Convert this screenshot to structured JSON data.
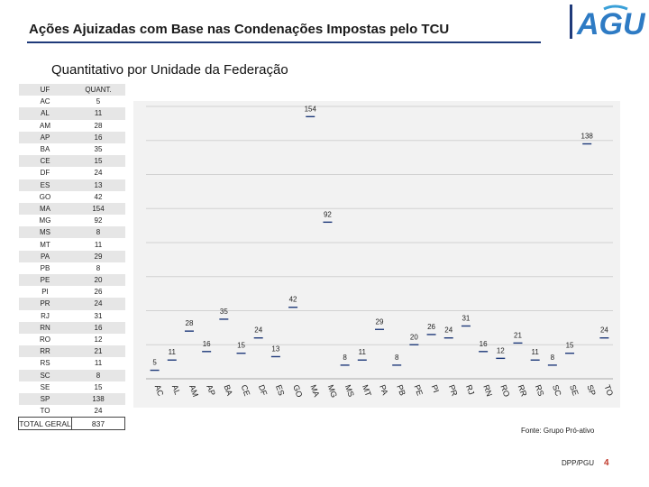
{
  "header": {
    "title": "Ações Ajuizadas com Base nas Condenações Impostas pelo TCU",
    "logo_text": "AGU"
  },
  "subtitle": "Quantitativo por Unidade da Federação",
  "table": {
    "headers": [
      "UF",
      "QUANT."
    ],
    "rows": [
      [
        "AC",
        "5"
      ],
      [
        "AL",
        "11"
      ],
      [
        "AM",
        "28"
      ],
      [
        "AP",
        "16"
      ],
      [
        "BA",
        "35"
      ],
      [
        "CE",
        "15"
      ],
      [
        "DF",
        "24"
      ],
      [
        "ES",
        "13"
      ],
      [
        "GO",
        "42"
      ],
      [
        "MA",
        "154"
      ],
      [
        "MG",
        "92"
      ],
      [
        "MS",
        "8"
      ],
      [
        "MT",
        "11"
      ],
      [
        "PA",
        "29"
      ],
      [
        "PB",
        "8"
      ],
      [
        "PE",
        "20"
      ],
      [
        "PI",
        "26"
      ],
      [
        "PR",
        "24"
      ],
      [
        "RJ",
        "31"
      ],
      [
        "RN",
        "16"
      ],
      [
        "RO",
        "12"
      ],
      [
        "RR",
        "21"
      ],
      [
        "RS",
        "11"
      ],
      [
        "SC",
        "8"
      ],
      [
        "SE",
        "15"
      ],
      [
        "SP",
        "138"
      ],
      [
        "TO",
        "24"
      ]
    ],
    "total": [
      "TOTAL GERAL",
      "837"
    ]
  },
  "chart_data": {
    "type": "line",
    "categories": [
      "AC",
      "AL",
      "AM",
      "AP",
      "BA",
      "CE",
      "DF",
      "ES",
      "GO",
      "MA",
      "MG",
      "MS",
      "MT",
      "PA",
      "PB",
      "PE",
      "PI",
      "PR",
      "RJ",
      "RN",
      "RO",
      "RR",
      "RS",
      "SC",
      "SE",
      "SP",
      "TO"
    ],
    "values": [
      5,
      11,
      28,
      16,
      35,
      15,
      24,
      13,
      42,
      154,
      92,
      8,
      11,
      29,
      8,
      20,
      26,
      24,
      31,
      16,
      12,
      21,
      11,
      8,
      15,
      138,
      24
    ],
    "ylim": [
      0,
      160
    ],
    "grid": true,
    "marker_color": "#1f3a7a"
  },
  "footer": {
    "source": "Fonte: Grupo Pró-ativo",
    "dept": "DPP/PGU",
    "page": "4"
  }
}
